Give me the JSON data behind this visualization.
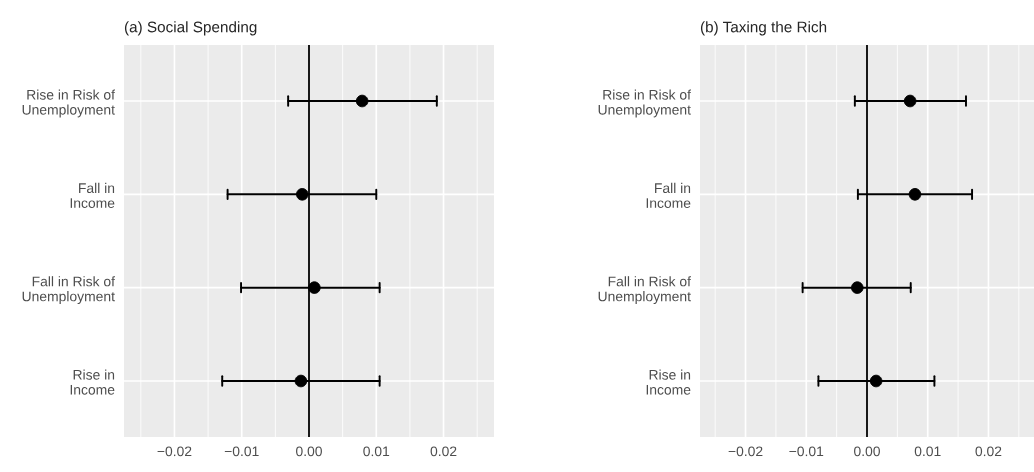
{
  "chart_data": [
    {
      "type": "scatter",
      "title": "(a) Social Spending",
      "orientation": "horizontal",
      "categories": [
        "Rise in Risk of\nUnemployment",
        "Fall in\nIncome",
        "Fall in Risk of\nUnemployment",
        "Rise in\nIncome"
      ],
      "series": [
        {
          "color": "#000000",
          "values": [
            0.0079,
            -0.001,
            0.0008,
            -0.0012
          ],
          "errors": [
            [
              -0.0031,
              0.019
            ],
            [
              -0.0121,
              0.01
            ],
            [
              -0.0101,
              0.0105
            ],
            [
              -0.0129,
              0.0105
            ]
          ]
        }
      ],
      "xlim": [
        -0.0275,
        0.0275
      ],
      "xticks": [
        {
          "value": -0.02,
          "label": "−0.02"
        },
        {
          "value": -0.01,
          "label": "−0.01"
        },
        {
          "value": 0,
          "label": "0.00"
        },
        {
          "value": 0.01,
          "label": "0.01"
        },
        {
          "value": 0.02,
          "label": "0.02"
        }
      ],
      "ref_lines": [
        {
          "axis": "x",
          "value": 0,
          "color": "#000000"
        }
      ],
      "grid": true,
      "marker": "circle"
    },
    {
      "type": "scatter",
      "title": "(b) Taxing the Rich",
      "orientation": "horizontal",
      "categories": [
        "Rise in Risk of\nUnemployment",
        "Fall in\nIncome",
        "Fall in Risk of\nUnemployment",
        "Rise in\nIncome"
      ],
      "series": [
        {
          "color": "#000000",
          "values": [
            0.0071,
            0.0079,
            -0.0016,
            0.0015
          ],
          "errors": [
            [
              -0.002,
              0.0163
            ],
            [
              -0.0015,
              0.0173
            ],
            [
              -0.0106,
              0.0072
            ],
            [
              -0.008,
              0.0111
            ]
          ]
        }
      ],
      "xlim": [
        -0.0275,
        0.0275
      ],
      "xticks": [
        {
          "value": -0.02,
          "label": "−0.02"
        },
        {
          "value": -0.01,
          "label": "−0.01"
        },
        {
          "value": 0,
          "label": "0.00"
        },
        {
          "value": 0.01,
          "label": "0.01"
        },
        {
          "value": 0.02,
          "label": "0.02"
        }
      ],
      "ref_lines": [
        {
          "axis": "x",
          "value": 0,
          "color": "#000000"
        }
      ],
      "grid": true,
      "marker": "circle"
    }
  ]
}
